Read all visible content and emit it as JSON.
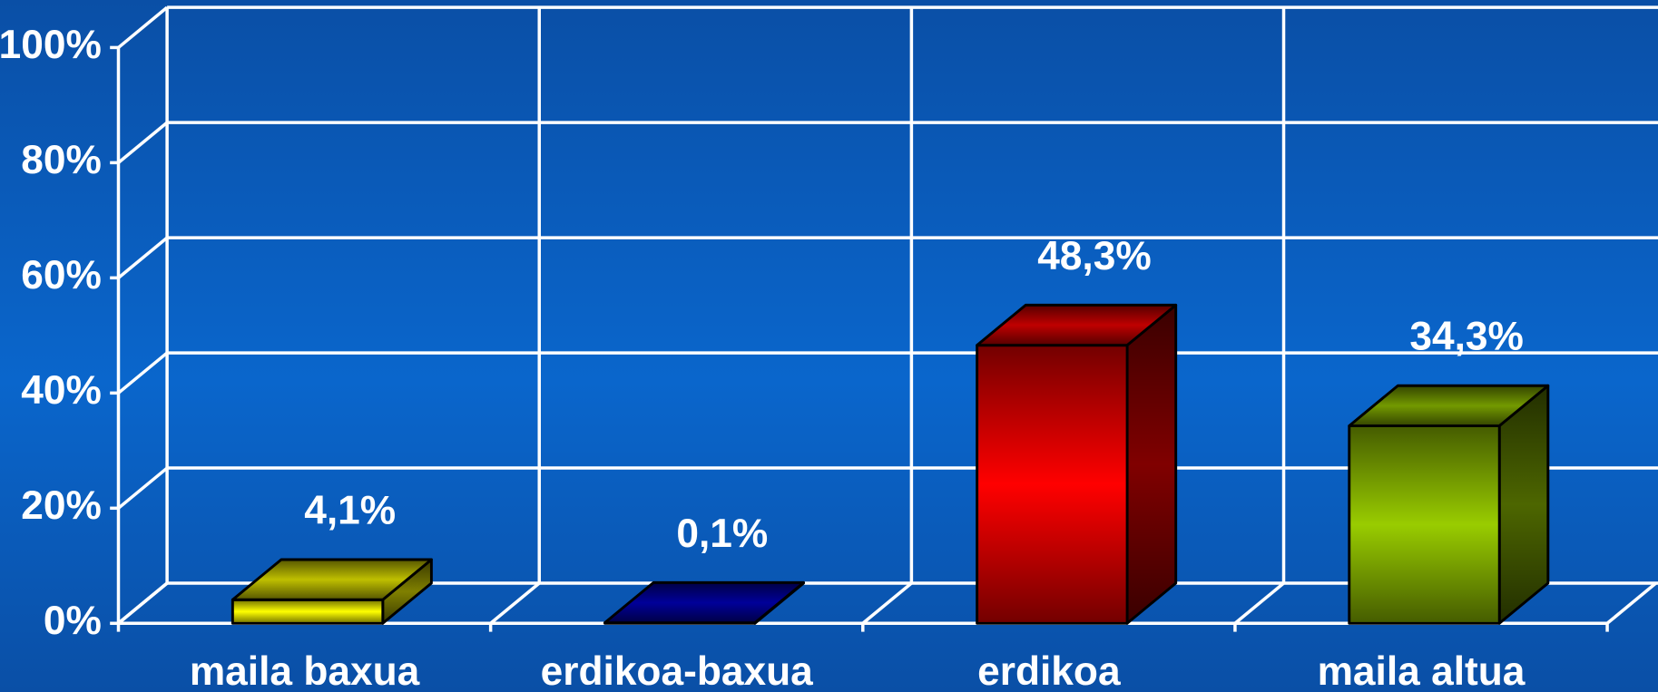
{
  "chart_data": {
    "type": "bar3d",
    "categories": [
      "maila baxua",
      "erdikoa-baxua",
      "erdikoa",
      "maila altua"
    ],
    "values": [
      4.1,
      0.1,
      48.3,
      34.3
    ],
    "value_labels": [
      "4,1%",
      "0,1%",
      "48,3%",
      "34,3%"
    ],
    "colors": [
      "#ffff00",
      "#0000cc",
      "#ff0000",
      "#99cc00"
    ],
    "ylim": [
      0,
      100
    ],
    "yticks": [
      {
        "value": 0,
        "label": "0%"
      },
      {
        "value": 20,
        "label": "20%"
      },
      {
        "value": 40,
        "label": "40%"
      },
      {
        "value": 60,
        "label": "60%"
      },
      {
        "value": 80,
        "label": "80%"
      },
      {
        "value": 100,
        "label": "100%"
      }
    ],
    "grid": true
  }
}
